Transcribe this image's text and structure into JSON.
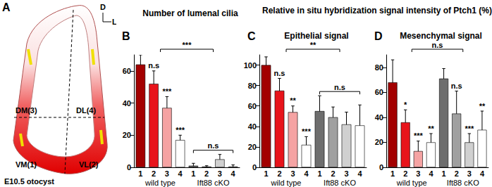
{
  "figure_title": "Relative in situ hybridization signal intensity of Ptch1 (%)",
  "diagram": {
    "panel": "A",
    "compass": [
      "D",
      "L"
    ],
    "regions": [
      "DM(3)",
      "DL(4)",
      "VM(1)",
      "VL(2)"
    ],
    "caption": "E10.5 otocyst"
  },
  "chart_data": [
    {
      "type": "bar",
      "panel": "B",
      "title": "Number of lumenal cilia",
      "groups": [
        "wild type",
        "Ift88 cKO"
      ],
      "categories": [
        "1",
        "2",
        "3",
        "4",
        "1",
        "2",
        "3",
        "4"
      ],
      "values": [
        64,
        52,
        37,
        17,
        1,
        0.5,
        5,
        0.5
      ],
      "errors": [
        6,
        8,
        7,
        3,
        1.5,
        0.5,
        3,
        1
      ],
      "colors": [
        "#a30000",
        "#e8141b",
        "#f5a3a3",
        "#ffffff",
        "#6e6e6e",
        "#a0a0a0",
        "#d0d0d0",
        "#ffffff"
      ],
      "significance": [
        null,
        "n.s",
        "***",
        "***",
        null,
        null,
        null,
        null
      ],
      "group_significance": [
        null,
        "n.s"
      ],
      "overall_significance": "***",
      "ylim": [
        0,
        70
      ],
      "yticks": [
        0,
        20,
        40,
        60
      ]
    },
    {
      "type": "bar",
      "panel": "C",
      "title": "Epithelial signal",
      "groups": [
        "wild type",
        "Ift88 cKO"
      ],
      "categories": [
        "1",
        "2",
        "3",
        "4",
        "1",
        "2",
        "3",
        "4"
      ],
      "values": [
        100,
        75,
        54,
        22,
        55,
        49,
        42,
        41
      ],
      "errors": [
        8,
        12,
        6,
        8,
        15,
        10,
        12,
        20
      ],
      "colors": [
        "#a30000",
        "#e8141b",
        "#f5a3a3",
        "#ffffff",
        "#6e6e6e",
        "#a0a0a0",
        "#d0d0d0",
        "#ffffff"
      ],
      "significance": [
        null,
        "n.s",
        "**",
        "***",
        null,
        null,
        null,
        null
      ],
      "group_significance": [
        null,
        "n.s"
      ],
      "overall_significance": "**",
      "ylim": [
        0,
        110
      ],
      "yticks": [
        0,
        20,
        40,
        60,
        80,
        100
      ]
    },
    {
      "type": "bar",
      "panel": "D",
      "title": "Mesenchymal signal",
      "groups": [
        "wild type",
        "Ift88 cKO"
      ],
      "categories": [
        "1",
        "2",
        "3",
        "4",
        "1",
        "2",
        "3",
        "4"
      ],
      "values": [
        68,
        36,
        13,
        20,
        71,
        43,
        20,
        30
      ],
      "errors": [
        18,
        10,
        8,
        7,
        8,
        18,
        7,
        15
      ],
      "colors": [
        "#a30000",
        "#e8141b",
        "#f5a3a3",
        "#ffffff",
        "#6e6e6e",
        "#a0a0a0",
        "#d0d0d0",
        "#ffffff"
      ],
      "significance": [
        null,
        "*",
        "***",
        "**",
        null,
        "n.s",
        "***",
        "**"
      ],
      "group_significance": [
        null,
        null
      ],
      "overall_significance": "n.s",
      "ylim": [
        0,
        90
      ],
      "yticks": [
        0,
        20,
        40,
        60,
        80
      ]
    }
  ]
}
